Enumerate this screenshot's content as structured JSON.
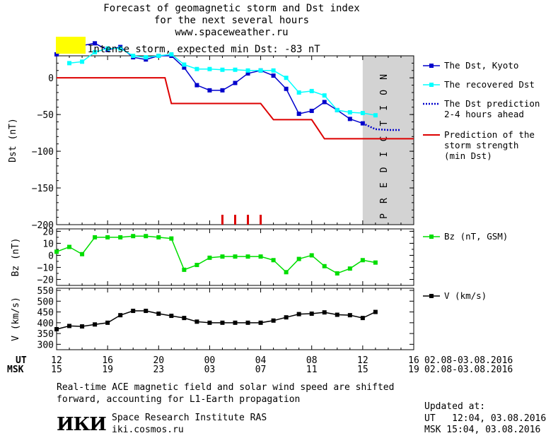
{
  "header": {
    "line1": "Forecast of geomagnetic storm and Dst index",
    "line2": "for the next several hours",
    "line3": "www.spaceweather.ru"
  },
  "storm_banner": {
    "text": "Intense storm, expected min Dst: -83 nT",
    "color": "#ffff00"
  },
  "prediction_label": "PREDICTION",
  "legend": {
    "dst_kyoto": "The Dst, Kyoto",
    "dst_recovered": "The recovered Dst",
    "dst_prediction": "The Dst prediction\n2-4 hours ahead",
    "storm_strength": "Prediction of the\nstorm strength\n(min Dst)",
    "bz": "Bz (nT, GSM)",
    "v": "V (km/s)"
  },
  "time_axis": {
    "ut_label": "UT",
    "msk_label": "MSK",
    "ut_ticks": [
      "12",
      "16",
      "20",
      "00",
      "04",
      "08",
      "12",
      "16"
    ],
    "msk_ticks": [
      "15",
      "19",
      "23",
      "03",
      "07",
      "11",
      "15",
      "19"
    ],
    "ut_range": "02.08-03.08.2016",
    "msk_range": "02.08-03.08.2016"
  },
  "footer": {
    "note": "Real-time ACE magnetic field and solar wind speed are shifted\nforward, accounting for L1-Earth propagation",
    "institute": "Space Research Institute RAS",
    "site": "iki.cosmos.ru",
    "logo_text": "ИКИ",
    "updated_title": "Updated at:",
    "updated_ut": "UT   12:04, 03.08.2016",
    "updated_msk": "MSK 15:04, 03.08.2016"
  },
  "colors": {
    "kyoto": "#0000cc",
    "recovered": "#00ffff",
    "prediction_dots": "#0000cc",
    "storm_line": "#dd0000",
    "bz": "#00dd00",
    "v": "#000000",
    "prediction_band": "#d3d3d3"
  },
  "chart_data": [
    {
      "type": "line",
      "title": "Dst",
      "ylabel": "Dst (nT)",
      "ylim": [
        -200,
        30
      ],
      "y_ticks": [
        0,
        -50,
        -100,
        -150,
        -200
      ],
      "x_unit": "hours UT from 02.08 12:00",
      "xlim": [
        0,
        28
      ],
      "prediction_start": 24,
      "series": [
        {
          "name": "The Dst, Kyoto",
          "x": [
            0,
            1,
            2,
            3,
            4,
            5,
            6,
            7,
            8,
            9,
            10,
            11,
            12,
            13,
            14,
            15,
            16,
            17,
            18,
            19,
            20,
            21,
            22,
            23,
            24
          ],
          "y": [
            32,
            38,
            44,
            47,
            38,
            42,
            28,
            25,
            30,
            30,
            14,
            -10,
            -17,
            -17,
            -7,
            6,
            10,
            3,
            -15,
            -49,
            -45,
            -33,
            -44,
            -56,
            -62
          ]
        },
        {
          "name": "The recovered Dst",
          "x": [
            1,
            2,
            3,
            4,
            5,
            6,
            7,
            8,
            9,
            10,
            11,
            12,
            13,
            14,
            15,
            16,
            17,
            18,
            19,
            20,
            21,
            22,
            23,
            24,
            25
          ],
          "y": [
            20,
            22,
            35,
            40,
            40,
            30,
            28,
            30,
            32,
            18,
            12,
            12,
            11,
            11,
            10,
            10,
            10,
            0,
            -20,
            -18,
            -24,
            -44,
            -47,
            -48,
            -51
          ]
        },
        {
          "name": "The Dst prediction 2-4 hours ahead",
          "x": [
            24,
            25,
            26,
            27
          ],
          "y": [
            -62,
            -70,
            -71,
            -71
          ]
        },
        {
          "name": "Prediction of the storm strength (min Dst)",
          "step": true,
          "x": [
            0,
            8.5,
            9,
            16,
            17,
            20,
            21,
            28
          ],
          "y": [
            0,
            0,
            -35,
            -35,
            -57,
            -57,
            -83,
            -83
          ]
        }
      ],
      "markers_x": [
        13,
        14,
        15,
        16
      ]
    },
    {
      "type": "line",
      "ylabel": "Bz (nT)",
      "ylim": [
        -25,
        22
      ],
      "y_ticks": [
        20,
        10,
        0,
        -10,
        -20
      ],
      "series": [
        {
          "name": "Bz (nT, GSM)",
          "x": [
            0,
            1,
            2,
            3,
            4,
            5,
            6,
            7,
            8,
            9,
            10,
            11,
            12,
            13,
            14,
            15,
            16,
            17,
            18,
            19,
            20,
            21,
            22,
            23,
            24,
            25
          ],
          "y": [
            3,
            7,
            1,
            15,
            15,
            15,
            16,
            16,
            15,
            14,
            -12,
            -8,
            -2,
            -1,
            -1,
            -1,
            -1,
            -4,
            -14,
            -3,
            0,
            -9,
            -15,
            -11,
            -4,
            -6
          ]
        }
      ]
    },
    {
      "type": "line",
      "ylabel": "V (km/s)",
      "ylim": [
        275,
        560
      ],
      "y_ticks": [
        300,
        350,
        400,
        450,
        500,
        550
      ],
      "series": [
        {
          "name": "V (km/s)",
          "x": [
            0,
            1,
            2,
            3,
            4,
            5,
            6,
            7,
            8,
            9,
            10,
            11,
            12,
            13,
            14,
            15,
            16,
            17,
            18,
            19,
            20,
            21,
            22,
            23,
            24,
            25
          ],
          "y": [
            370,
            385,
            383,
            392,
            400,
            435,
            455,
            455,
            442,
            432,
            422,
            405,
            400,
            400,
            400,
            400,
            400,
            410,
            425,
            440,
            442,
            448,
            437,
            435,
            422,
            450
          ]
        }
      ]
    }
  ]
}
